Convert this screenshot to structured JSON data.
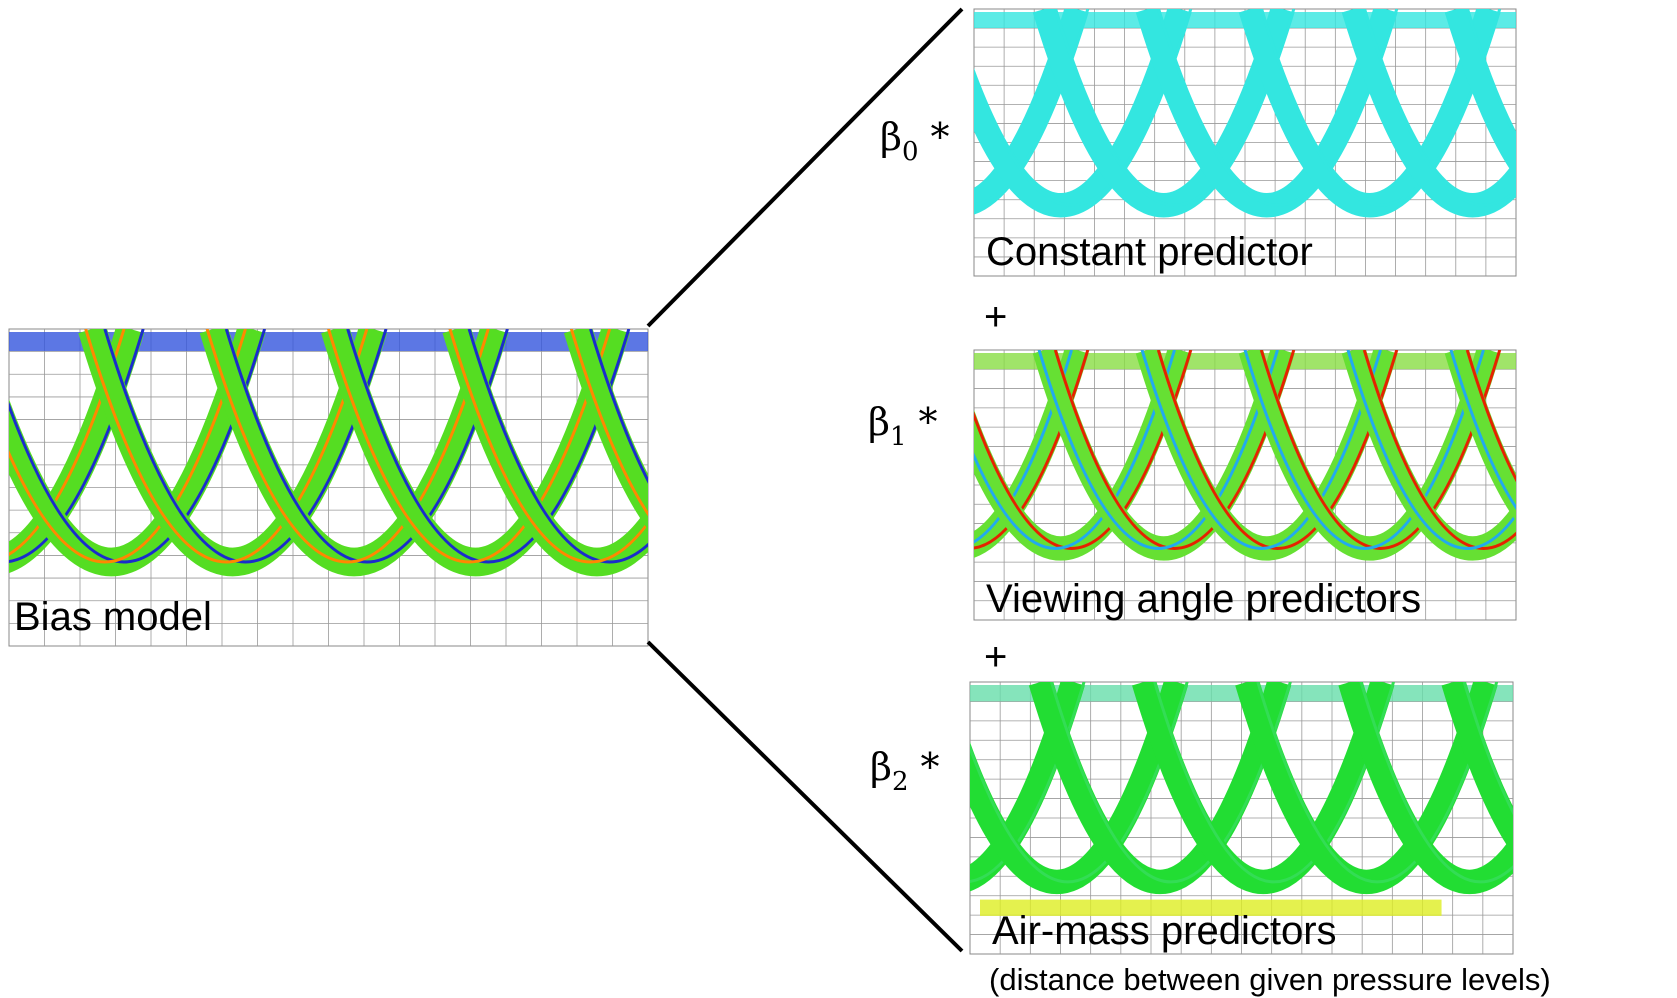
{
  "bias_model": {
    "label": "Bias model"
  },
  "terms": [
    {
      "coefficient": "β",
      "subscript": "0",
      "operator": "*",
      "label": "Constant predictor"
    },
    {
      "coefficient": "β",
      "subscript": "1",
      "operator": "*",
      "label": "Viewing angle predictors"
    },
    {
      "coefficient": "β",
      "subscript": "2",
      "operator": "*",
      "label": "Air-mass predictors"
    }
  ],
  "plus_signs": [
    "+",
    "+"
  ],
  "note": "(distance between given pressure levels)"
}
